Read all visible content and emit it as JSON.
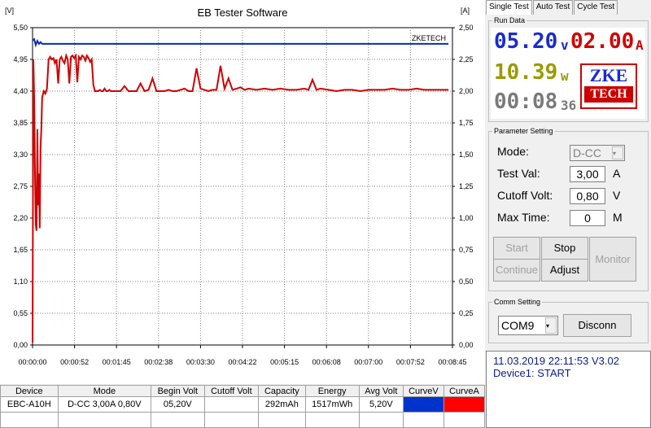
{
  "chart": {
    "title": "EB Tester Software",
    "left_unit": "[V]",
    "right_unit": "[A]",
    "watermark": "ZKETECH"
  },
  "chart_data": {
    "type": "line",
    "x_ticks": [
      "00:00:00",
      "00:00:52",
      "00:01:45",
      "00:02:38",
      "00:03:30",
      "00:04:22",
      "00:05:15",
      "00:06:08",
      "00:07:00",
      "00:07:52",
      "00:08:45"
    ],
    "x_range_seconds": [
      0,
      525
    ],
    "y_left_ticks": [
      "0,00",
      "0,55",
      "1,10",
      "1,65",
      "2,20",
      "2,75",
      "3,30",
      "3,85",
      "4,40",
      "4,95",
      "5,50"
    ],
    "y_left_range": [
      0,
      5.5
    ],
    "y_right_ticks": [
      "0,00",
      "0,25",
      "0,50",
      "0,75",
      "1,00",
      "1,25",
      "1,50",
      "1,75",
      "2,00",
      "2,25",
      "2,50"
    ],
    "y_right_range": [
      0,
      2.5
    ],
    "grid": true,
    "series": [
      {
        "color": "#0b2bb0",
        "axis": "left",
        "x": [
          0,
          2,
          4,
          6,
          8,
          10,
          12,
          14,
          16,
          18,
          20,
          520
        ],
        "y": [
          5.28,
          5.3,
          5.2,
          5.27,
          5.22,
          5.25,
          5.22,
          5.22,
          5.22,
          5.22,
          5.22,
          5.22
        ]
      },
      {
        "color": "#d00000",
        "axis": "right",
        "x": [
          0,
          1,
          2,
          3,
          4,
          5,
          6,
          7,
          8,
          9,
          10,
          11,
          12,
          14,
          16,
          18,
          20,
          22,
          24,
          26,
          28,
          30,
          32,
          34,
          36,
          38,
          40,
          42,
          44,
          46,
          48,
          50,
          52,
          54,
          56,
          58,
          60,
          62,
          64,
          66,
          68,
          70,
          72,
          74,
          76,
          78,
          80,
          82,
          84,
          86,
          88,
          90,
          92,
          94,
          96,
          98,
          100,
          105,
          110,
          115,
          120,
          125,
          130,
          135,
          140,
          145,
          150,
          155,
          160,
          165,
          170,
          175,
          180,
          185,
          190,
          195,
          200,
          205,
          210,
          215,
          220,
          225,
          230,
          235,
          240,
          245,
          250,
          255,
          260,
          265,
          270,
          280,
          290,
          300,
          310,
          320,
          330,
          340,
          345,
          350,
          355,
          360,
          370,
          380,
          390,
          400,
          410,
          420,
          430,
          440,
          450,
          460,
          470,
          480,
          490,
          500,
          510,
          520
        ],
        "y": [
          0.02,
          2.25,
          1.95,
          1.4,
          0.95,
          0.9,
          1.7,
          1.1,
          1.35,
          0.92,
          1.55,
          1.7,
          1.95,
          2.0,
          1.98,
          2.02,
          2.25,
          2.27,
          2.25,
          2.26,
          2.22,
          2.25,
          2.06,
          2.25,
          2.27,
          2.24,
          2.22,
          2.28,
          2.25,
          2.06,
          2.27,
          2.28,
          2.26,
          2.28,
          2.07,
          2.27,
          2.25,
          2.28,
          2.27,
          2.24,
          2.28,
          2.26,
          2.23,
          2.25,
          2.05,
          2.0,
          2.0,
          2.0,
          2.01,
          2.0,
          2.0,
          2.02,
          2.0,
          2.0,
          2.01,
          2.0,
          2.0,
          2.0,
          2.0,
          2.04,
          2.0,
          2.0,
          2.0,
          2.06,
          2.0,
          2.01,
          2.1,
          2.0,
          2.0,
          2.0,
          2.01,
          2.0,
          2.0,
          2.01,
          2.02,
          2.0,
          2.0,
          2.18,
          2.02,
          2.01,
          2.0,
          2.01,
          2.01,
          2.2,
          2.02,
          2.1,
          2.01,
          2.02,
          2.03,
          2.01,
          2.02,
          2.01,
          2.02,
          2.01,
          2.02,
          2.01,
          2.01,
          2.02,
          2.01,
          2.09,
          2.01,
          2.02,
          2.01,
          2.0,
          2.01,
          2.01,
          2.0,
          2.01,
          2.01,
          2.01,
          2.02,
          2.01,
          2.01,
          2.02,
          2.01,
          2.01,
          2.01,
          2.01
        ]
      }
    ]
  },
  "table": {
    "headers": [
      "Device",
      "Mode",
      "Begin Volt",
      "Cutoff Volt",
      "Capacity",
      "Energy",
      "Avg Volt",
      "CurveV",
      "CurveA"
    ],
    "rows": [
      [
        "EBC-A10H",
        "D-CC  3,00A  0,80V",
        "05,20V",
        "",
        "292mAh",
        "1517mWh",
        "5,20V",
        "",
        ""
      ]
    ],
    "curve_colors": [
      "#0033cc",
      "#ff0000"
    ]
  },
  "tabs": [
    "Single Test",
    "Auto Test",
    "Cycle Test"
  ],
  "run_data": {
    "legend": "Run Data",
    "voltage": "05.20",
    "voltage_unit": "v",
    "current": "02.00",
    "current_unit": "A",
    "power": "10.39",
    "power_unit": "w",
    "time_main": "00:08",
    "time_sec": "36",
    "logo_line1": "ZKE",
    "logo_line2": "TECH"
  },
  "params": {
    "legend": "Parameter Setting",
    "mode_label": "Mode:",
    "mode_value": "D-CC",
    "test_val_label": "Test Val:",
    "test_val": "3,00",
    "test_val_unit": "A",
    "cutoff_label": "Cutoff Volt:",
    "cutoff_val": "0,80",
    "cutoff_unit": "V",
    "maxtime_label": "Max Time:",
    "maxtime_val": "0",
    "maxtime_unit": "M",
    "start": "Start",
    "stop": "Stop",
    "continue": "Continue",
    "adjust": "Adjust",
    "monitor": "Monitor"
  },
  "comm": {
    "legend": "Comm Setting",
    "port": "COM9",
    "disconnect": "Disconn"
  },
  "status": {
    "line1": "11.03.2019 22:11:53  V3.02",
    "line2": "Device1: START"
  },
  "colors": {
    "voltage": "#1a2bd0",
    "current": "#d00000",
    "power": "#9a9a00",
    "time": "#7a7a7a"
  }
}
